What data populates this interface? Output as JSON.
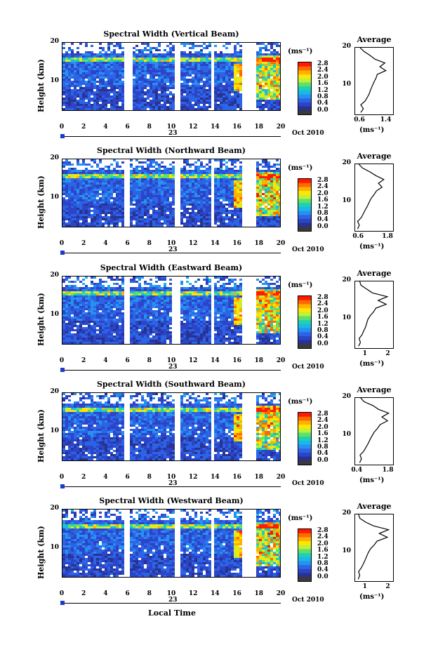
{
  "x_axis_label": "Local Time",
  "colorbar": {
    "unit_label": "(ms⁻¹)",
    "tick_labels": [
      "2.8",
      "2.4",
      "2.0",
      "1.6",
      "1.2",
      "0.8",
      "0.4",
      "0.0"
    ],
    "colors": [
      "#ff1a00",
      "#ff6a00",
      "#ffb000",
      "#ffe600",
      "#bff03a",
      "#5fe06a",
      "#20d0b0",
      "#18b8e8",
      "#2890f0",
      "#2c64e6",
      "#2c44c8",
      "#283290",
      "#3a3a3a"
    ]
  },
  "chart_data": [
    {
      "type": "heatmap",
      "title": "Spectral Width (Vertical Beam)",
      "ylabel": "Height (km)",
      "xlabel": "Local Time",
      "x_ticks": [
        "0",
        "2",
        "4",
        "6",
        "8",
        "10",
        "12",
        "14",
        "16",
        "18",
        "20"
      ],
      "xlim": [
        0,
        20
      ],
      "y_ticks": [
        "20",
        "10"
      ],
      "ylim": [
        2.5,
        20
      ],
      "day_label": "23",
      "date_label": "Oct 2010",
      "colorbar_range": [
        0.0,
        3.0
      ],
      "data_gaps": [
        [
          5.6,
          6.2
        ],
        [
          10.2,
          10.6
        ],
        [
          13.4,
          13.8
        ],
        [
          16.4,
          17.6
        ]
      ],
      "average": {
        "title": "Average",
        "xlabel": "(ms⁻¹)",
        "x_ticks": [
          "0.6",
          "1.4"
        ],
        "xlim": [
          0.45,
          1.6
        ],
        "y_ticks": [
          "20",
          "10"
        ],
        "ylim": [
          2.5,
          20
        ],
        "profile": [
          [
            0.62,
            3
          ],
          [
            0.7,
            4
          ],
          [
            0.62,
            5
          ],
          [
            0.75,
            6
          ],
          [
            0.82,
            7
          ],
          [
            0.88,
            8
          ],
          [
            0.92,
            9
          ],
          [
            0.97,
            10
          ],
          [
            1.02,
            11
          ],
          [
            1.08,
            12
          ],
          [
            1.12,
            13
          ],
          [
            1.38,
            14
          ],
          [
            1.2,
            15
          ],
          [
            1.35,
            16
          ],
          [
            1.05,
            17
          ],
          [
            0.9,
            18
          ],
          [
            0.72,
            19
          ],
          [
            0.6,
            20
          ]
        ]
      }
    },
    {
      "type": "heatmap",
      "title": "Spectral Width (Northward Beam)",
      "ylabel": "Height (km)",
      "xlabel": "Local Time",
      "x_ticks": [
        "0",
        "2",
        "4",
        "6",
        "8",
        "10",
        "12",
        "14",
        "16",
        "18",
        "20"
      ],
      "xlim": [
        0,
        20
      ],
      "y_ticks": [
        "20",
        "10"
      ],
      "ylim": [
        2.5,
        20
      ],
      "day_label": "23",
      "date_label": "Oct 2010",
      "colorbar_range": [
        0.0,
        3.0
      ],
      "data_gaps": [
        [
          5.6,
          6.0
        ],
        [
          10.2,
          10.6
        ],
        [
          13.4,
          13.8
        ],
        [
          16.4,
          17.6
        ]
      ],
      "average": {
        "title": "Average",
        "xlabel": "(ms⁻¹)",
        "x_ticks": [
          "0.6",
          "1.8"
        ],
        "xlim": [
          0.45,
          2.0
        ],
        "y_ticks": [
          "20",
          "10"
        ],
        "ylim": [
          2.5,
          20
        ],
        "profile": [
          [
            0.55,
            3
          ],
          [
            0.62,
            4
          ],
          [
            0.55,
            5
          ],
          [
            0.7,
            6
          ],
          [
            0.78,
            7
          ],
          [
            0.86,
            8
          ],
          [
            0.95,
            9
          ],
          [
            1.02,
            10
          ],
          [
            1.1,
            11
          ],
          [
            1.22,
            12
          ],
          [
            1.32,
            13
          ],
          [
            1.55,
            14
          ],
          [
            1.4,
            15
          ],
          [
            1.62,
            16
          ],
          [
            1.3,
            17
          ],
          [
            1.05,
            18
          ],
          [
            0.75,
            19
          ],
          [
            0.6,
            20
          ]
        ]
      }
    },
    {
      "type": "heatmap",
      "title": "Spectral Width (Eastward Beam)",
      "ylabel": "Height (km)",
      "xlabel": "Local Time",
      "x_ticks": [
        "0",
        "2",
        "4",
        "6",
        "8",
        "10",
        "12",
        "14",
        "16",
        "18",
        "20"
      ],
      "xlim": [
        0,
        20
      ],
      "y_ticks": [
        "20",
        "10"
      ],
      "ylim": [
        2.5,
        20
      ],
      "day_label": "23",
      "date_label": "Oct 2010",
      "colorbar_range": [
        0.0,
        3.0
      ],
      "data_gaps": [
        [
          5.6,
          6.0
        ],
        [
          10.0,
          10.6
        ],
        [
          13.4,
          13.8
        ],
        [
          16.4,
          17.6
        ]
      ],
      "average": {
        "title": "Average",
        "xlabel": "(ms⁻¹)",
        "x_ticks": [
          "1",
          "2"
        ],
        "xlim": [
          0.55,
          2.2
        ],
        "y_ticks": [
          "20",
          "10"
        ],
        "ylim": [
          2.5,
          20
        ],
        "profile": [
          [
            0.7,
            3
          ],
          [
            0.78,
            4
          ],
          [
            0.72,
            5
          ],
          [
            0.85,
            6
          ],
          [
            0.92,
            7
          ],
          [
            1.0,
            8
          ],
          [
            1.05,
            9
          ],
          [
            1.1,
            10
          ],
          [
            1.2,
            11
          ],
          [
            1.35,
            12
          ],
          [
            1.45,
            13
          ],
          [
            1.9,
            14
          ],
          [
            1.55,
            15
          ],
          [
            1.95,
            16
          ],
          [
            1.3,
            17
          ],
          [
            1.05,
            18
          ],
          [
            0.8,
            19
          ],
          [
            0.75,
            20
          ]
        ]
      }
    },
    {
      "type": "heatmap",
      "title": "Spectral Width (Southward Beam)",
      "ylabel": "Height (km)",
      "xlabel": "Local Time",
      "x_ticks": [
        "0",
        "2",
        "4",
        "6",
        "8",
        "10",
        "12",
        "14",
        "16",
        "18",
        "20"
      ],
      "xlim": [
        0,
        20
      ],
      "y_ticks": [
        "20",
        "10"
      ],
      "ylim": [
        2.5,
        20
      ],
      "day_label": "23",
      "date_label": "Oct 2010",
      "colorbar_range": [
        0.0,
        3.0
      ],
      "data_gaps": [
        [
          5.6,
          6.0
        ],
        [
          10.2,
          10.6
        ],
        [
          13.4,
          13.8
        ],
        [
          16.4,
          17.6
        ]
      ],
      "average": {
        "title": "Average",
        "xlabel": "(ms⁻¹)",
        "x_ticks": [
          "0.4",
          "1.8"
        ],
        "xlim": [
          0.3,
          2.0
        ],
        "y_ticks": [
          "20",
          "10"
        ],
        "ylim": [
          2.5,
          20
        ],
        "profile": [
          [
            0.5,
            3
          ],
          [
            0.58,
            4
          ],
          [
            0.52,
            5
          ],
          [
            0.68,
            6
          ],
          [
            0.78,
            7
          ],
          [
            0.88,
            8
          ],
          [
            0.96,
            9
          ],
          [
            1.05,
            10
          ],
          [
            1.15,
            11
          ],
          [
            1.3,
            12
          ],
          [
            1.42,
            13
          ],
          [
            1.75,
            14
          ],
          [
            1.5,
            15
          ],
          [
            1.8,
            16
          ],
          [
            1.35,
            17
          ],
          [
            1.1,
            18
          ],
          [
            0.7,
            19
          ],
          [
            0.55,
            20
          ]
        ]
      }
    },
    {
      "type": "heatmap",
      "title": "Spectral Width (Westward Beam)",
      "ylabel": "Height (km)",
      "xlabel": "Local Time",
      "x_ticks": [
        "0",
        "2",
        "4",
        "6",
        "8",
        "10",
        "12",
        "14",
        "16",
        "18",
        "20"
      ],
      "xlim": [
        0,
        20
      ],
      "y_ticks": [
        "20",
        "10"
      ],
      "ylim": [
        2.5,
        20
      ],
      "day_label": "23",
      "date_label": "Oct 2010",
      "colorbar_range": [
        0.0,
        3.0
      ],
      "data_gaps": [
        [
          5.6,
          6.0
        ],
        [
          10.2,
          10.6
        ],
        [
          13.4,
          13.8
        ],
        [
          16.4,
          17.6
        ]
      ],
      "average": {
        "title": "Average",
        "xlabel": "(ms⁻¹)",
        "x_ticks": [
          "1",
          "2"
        ],
        "xlim": [
          0.55,
          2.2
        ],
        "y_ticks": [
          "20",
          "10"
        ],
        "ylim": [
          2.5,
          20
        ],
        "profile": [
          [
            0.68,
            3
          ],
          [
            0.75,
            4
          ],
          [
            0.7,
            5
          ],
          [
            0.82,
            6
          ],
          [
            0.9,
            7
          ],
          [
            0.98,
            8
          ],
          [
            1.05,
            9
          ],
          [
            1.12,
            10
          ],
          [
            1.22,
            11
          ],
          [
            1.38,
            12
          ],
          [
            1.5,
            13
          ],
          [
            1.95,
            14
          ],
          [
            1.6,
            15
          ],
          [
            2.0,
            16
          ],
          [
            1.35,
            17
          ],
          [
            1.0,
            18
          ],
          [
            0.75,
            19
          ],
          [
            0.7,
            20
          ]
        ]
      }
    }
  ]
}
